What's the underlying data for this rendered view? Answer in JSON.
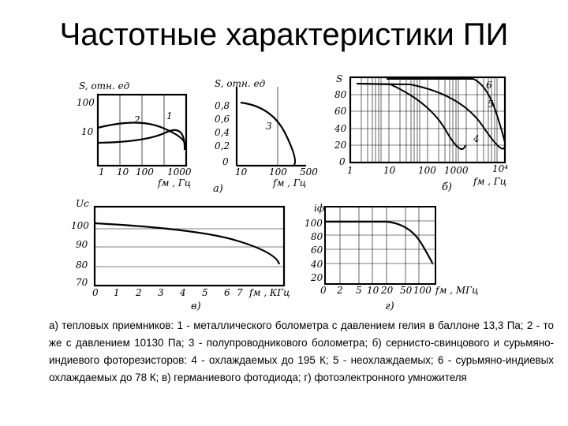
{
  "slide": {
    "title": "Частотные характеристики ПИ",
    "caption": "а) тепловых приемников: 1 - металлического болометра с давлением гелия в баллоне 13,3 Па; 2 - то же с давлением 10130 Па; 3 - полупроводникового болометра; б) сернисто-свинцового и сурьмяно-индиевого фоторезисторов: 4 - охлаждаемых до 195 К; 5 - неохлаждаемых; 6 - сурьмяно-индиевых охлаждаемых до 78 К; в) германиевого фотодиода; г) фотоэлектронного умножителя"
  },
  "figure": {
    "panel_a_label": "а)",
    "panel_b_label": "б)",
    "panel_v_label": "в)",
    "panel_g_label": "г)",
    "a1": {
      "ylabel": "S, отн. ед",
      "yticks": [
        "100",
        "10"
      ],
      "xticks": [
        "1",
        "10",
        "100",
        "1000"
      ],
      "xlabel": "fм , Гц",
      "curve_labels": [
        "2",
        "1"
      ]
    },
    "a2": {
      "ylabel": "S, отн. ед",
      "yticks": [
        "0,8",
        "0,6",
        "0,4",
        "0,2",
        "0"
      ],
      "xticks": [
        "10",
        "100",
        "500"
      ],
      "xlabel": "fм , Гц",
      "curve_labels": [
        "3"
      ]
    },
    "b": {
      "ylabel": "S",
      "yticks": [
        "80",
        "60",
        "40",
        "20",
        "0"
      ],
      "xticks": [
        "1",
        "10",
        "100",
        "1000",
        "10⁴"
      ],
      "xlabel": "fм , Гц",
      "curve_labels": [
        "6",
        "5",
        "4"
      ]
    },
    "v": {
      "ylabel": "Uс",
      "yticks": [
        "100",
        "90",
        "80",
        "70"
      ],
      "xticks": [
        "0",
        "1",
        "2",
        "3",
        "4",
        "5",
        "6",
        "7"
      ],
      "xlabel": "fм , КГц"
    },
    "g": {
      "ylabel": "iф",
      "yticks": [
        "100",
        "80",
        "60",
        "40",
        "20"
      ],
      "xticks": [
        "0",
        "2",
        "5",
        "10",
        "20",
        "50",
        "100"
      ],
      "xlabel": "fм , МГц"
    }
  }
}
